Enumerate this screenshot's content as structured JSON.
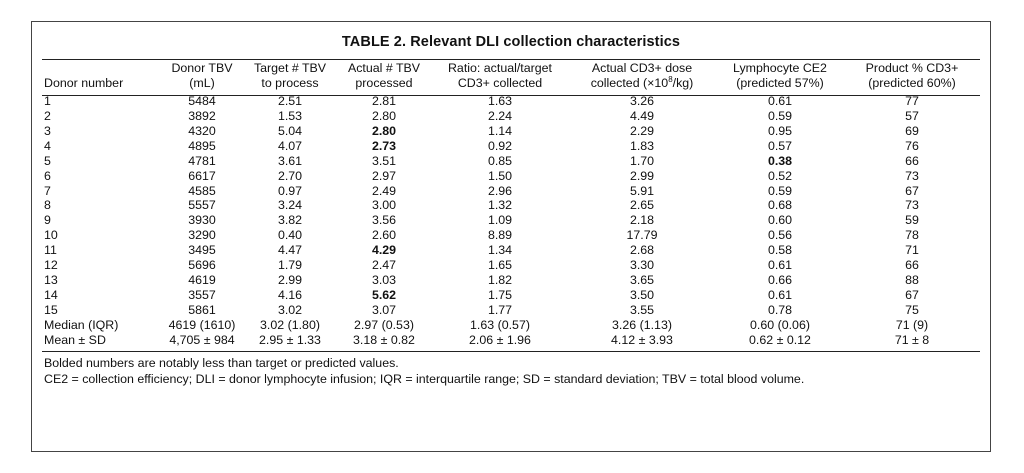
{
  "table": {
    "title": "TABLE 2. Relevant DLI collection characteristics",
    "columns": [
      {
        "line1": "",
        "line2": "Donor number"
      },
      {
        "line1": "Donor TBV",
        "line2": "(mL)"
      },
      {
        "line1": "Target # TBV",
        "line2": "to process"
      },
      {
        "line1": "Actual # TBV",
        "line2": "processed"
      },
      {
        "line1": "Ratio: actual/target",
        "line2": "CD3+ collected"
      },
      {
        "line1": "Actual CD3+ dose",
        "line2": "collected (×10",
        "sup": "8",
        "line2_tail": "/kg)"
      },
      {
        "line1": "Lymphocyte CE2",
        "line2": "(predicted 57%)"
      },
      {
        "line1": "Product % CD3+",
        "line2": "(predicted 60%)"
      }
    ],
    "rows": [
      {
        "cells": [
          "1",
          "5484",
          "2.51",
          "2.81",
          "1.63",
          "3.26",
          "0.61",
          "77"
        ],
        "bold": []
      },
      {
        "cells": [
          "2",
          "3892",
          "1.53",
          "2.80",
          "2.24",
          "4.49",
          "0.59",
          "57"
        ],
        "bold": []
      },
      {
        "cells": [
          "3",
          "4320",
          "5.04",
          "2.80",
          "1.14",
          "2.29",
          "0.95",
          "69"
        ],
        "bold": [
          3
        ]
      },
      {
        "cells": [
          "4",
          "4895",
          "4.07",
          "2.73",
          "0.92",
          "1.83",
          "0.57",
          "76"
        ],
        "bold": [
          3
        ]
      },
      {
        "cells": [
          "5",
          "4781",
          "3.61",
          "3.51",
          "0.85",
          "1.70",
          "0.38",
          "66"
        ],
        "bold": [
          6
        ]
      },
      {
        "cells": [
          "6",
          "6617",
          "2.70",
          "2.97",
          "1.50",
          "2.99",
          "0.52",
          "73"
        ],
        "bold": []
      },
      {
        "cells": [
          "7",
          "4585",
          "0.97",
          "2.49",
          "2.96",
          "5.91",
          "0.59",
          "67"
        ],
        "bold": []
      },
      {
        "cells": [
          "8",
          "5557",
          "3.24",
          "3.00",
          "1.32",
          "2.65",
          "0.68",
          "73"
        ],
        "bold": []
      },
      {
        "cells": [
          "9",
          "3930",
          "3.82",
          "3.56",
          "1.09",
          "2.18",
          "0.60",
          "59"
        ],
        "bold": []
      },
      {
        "cells": [
          "10",
          "3290",
          "0.40",
          "2.60",
          "8.89",
          "17.79",
          "0.56",
          "78"
        ],
        "bold": []
      },
      {
        "cells": [
          "11",
          "3495",
          "4.47",
          "4.29",
          "1.34",
          "2.68",
          "0.58",
          "71"
        ],
        "bold": [
          3
        ]
      },
      {
        "cells": [
          "12",
          "5696",
          "1.79",
          "2.47",
          "1.65",
          "3.30",
          "0.61",
          "66"
        ],
        "bold": []
      },
      {
        "cells": [
          "13",
          "4619",
          "2.99",
          "3.03",
          "1.82",
          "3.65",
          "0.66",
          "88"
        ],
        "bold": []
      },
      {
        "cells": [
          "14",
          "3557",
          "4.16",
          "5.62",
          "1.75",
          "3.50",
          "0.61",
          "67"
        ],
        "bold": [
          3
        ]
      },
      {
        "cells": [
          "15",
          "5861",
          "3.02",
          "3.07",
          "1.77",
          "3.55",
          "0.78",
          "75"
        ],
        "bold": []
      }
    ],
    "summary_rows": [
      {
        "cells": [
          "Median (IQR)",
          "4619 (1610)",
          "3.02 (1.80)",
          "2.97 (0.53)",
          "1.63 (0.57)",
          "3.26 (1.13)",
          "0.60 (0.06)",
          "71 (9)"
        ]
      },
      {
        "cells": [
          "Mean ± SD",
          "4,705 ± 984",
          "2.95 ± 1.33",
          "3.18 ± 0.82",
          "2.06 ± 1.96",
          "4.12 ± 3.93",
          "0.62 ± 0.12",
          "71 ± 8"
        ]
      }
    ],
    "footnotes": [
      "Bolded numbers are notably less than target or predicted values.",
      "CE2 = collection efficiency; DLI = donor lymphocyte infusion; IQR = interquartile range; SD = standard deviation; TBV = total blood volume."
    ]
  }
}
